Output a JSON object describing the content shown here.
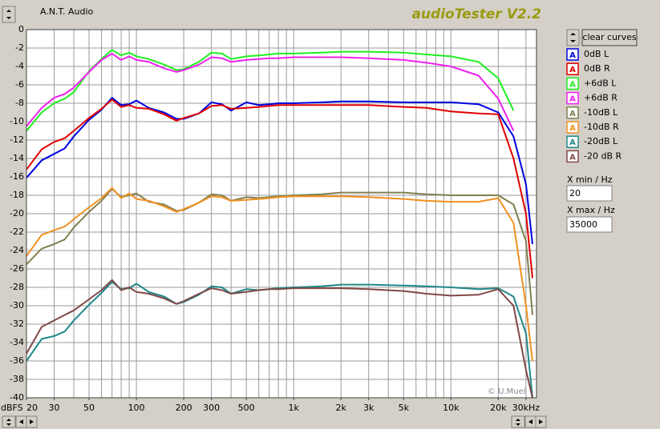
{
  "chart_data": {
    "type": "line",
    "xscale": "log",
    "x_label": "dBFS",
    "x": [
      20,
      25,
      30,
      35,
      40,
      50,
      60,
      70,
      80,
      90,
      100,
      120,
      150,
      180,
      200,
      250,
      300,
      350,
      400,
      500,
      600,
      700,
      800,
      1000,
      1500,
      2000,
      3000,
      5000,
      7000,
      10000,
      15000,
      20000,
      25000,
      30000,
      33000
    ],
    "series": [
      {
        "name": "0dB L",
        "color": "#0000e0",
        "values": [
          -16.1,
          -14.2,
          -13.5,
          -12.9,
          -11.6,
          -9.8,
          -8.7,
          -7.4,
          -8.2,
          -8.1,
          -7.7,
          -8.5,
          -9.0,
          -9.7,
          -9.7,
          -9.1,
          -7.9,
          -8.1,
          -8.8,
          -7.9,
          -8.2,
          -8.1,
          -8.0,
          -8.0,
          -7.9,
          -7.8,
          -7.8,
          -7.9,
          -7.9,
          -7.9,
          -8.1,
          -9.0,
          -11.6,
          -16.8,
          -23.3
        ]
      },
      {
        "name": "0dB R",
        "color": "#e00000",
        "values": [
          -15.2,
          -13.0,
          -12.2,
          -11.8,
          -11.0,
          -9.6,
          -8.6,
          -7.6,
          -8.4,
          -8.2,
          -8.5,
          -8.6,
          -9.2,
          -9.9,
          -9.6,
          -9.1,
          -8.3,
          -8.2,
          -8.6,
          -8.5,
          -8.4,
          -8.3,
          -8.2,
          -8.2,
          -8.2,
          -8.2,
          -8.2,
          -8.4,
          -8.5,
          -8.9,
          -9.1,
          -9.2,
          -14.0,
          -20.0,
          -27.0
        ]
      },
      {
        "name": "+6dB L",
        "color": "#20f020",
        "values": [
          -11.0,
          -9.0,
          -8.0,
          -7.5,
          -6.8,
          -4.5,
          -3.2,
          -2.2,
          -2.8,
          -2.5,
          -2.9,
          -3.2,
          -3.8,
          -4.4,
          -4.3,
          -3.5,
          -2.5,
          -2.6,
          -3.2,
          -2.9,
          -2.8,
          -2.7,
          -2.6,
          -2.6,
          -2.5,
          -2.4,
          -2.4,
          -2.5,
          -2.7,
          -2.9,
          -3.5,
          -5.3,
          -8.8,
          null,
          null
        ]
      },
      {
        "name": "+6dB R",
        "color": "#f020f0",
        "values": [
          -10.5,
          -8.5,
          -7.4,
          -7.0,
          -6.3,
          -4.6,
          -3.3,
          -2.6,
          -3.3,
          -2.9,
          -3.3,
          -3.5,
          -4.2,
          -4.6,
          -4.4,
          -3.8,
          -3.0,
          -3.1,
          -3.5,
          -3.3,
          -3.2,
          -3.1,
          -3.1,
          -3.0,
          -3.0,
          -3.0,
          -3.1,
          -3.3,
          -3.6,
          -4.0,
          -5.0,
          -7.5,
          -11.0,
          null,
          null
        ]
      },
      {
        "name": "-10dB L",
        "color": "#808050",
        "values": [
          -25.5,
          -23.8,
          -23.3,
          -22.8,
          -21.5,
          -19.8,
          -18.6,
          -17.3,
          -18.2,
          -18.0,
          -17.8,
          -18.7,
          -19.0,
          -19.7,
          -19.6,
          -18.8,
          -17.9,
          -18.0,
          -18.6,
          -18.2,
          -18.3,
          -18.2,
          -18.1,
          -18.0,
          -17.9,
          -17.7,
          -17.7,
          -17.7,
          -17.9,
          -18.0,
          -18.0,
          -18.0,
          -19.0,
          -23.0,
          -31.0
        ]
      },
      {
        "name": "-10dB R",
        "color": "#f09020",
        "values": [
          -24.6,
          -22.3,
          -21.8,
          -21.4,
          -20.6,
          -19.3,
          -18.3,
          -17.2,
          -18.3,
          -17.8,
          -18.4,
          -18.6,
          -19.2,
          -19.8,
          -19.5,
          -18.8,
          -18.1,
          -18.2,
          -18.6,
          -18.5,
          -18.4,
          -18.3,
          -18.2,
          -18.1,
          -18.1,
          -18.1,
          -18.2,
          -18.4,
          -18.6,
          -18.7,
          -18.7,
          -18.3,
          -21.0,
          -30.0,
          -36.0
        ]
      },
      {
        "name": "-20dB L",
        "color": "#208888",
        "values": [
          -36.0,
          -33.6,
          -33.3,
          -32.8,
          -31.6,
          -29.9,
          -28.6,
          -27.4,
          -28.2,
          -28.1,
          -27.6,
          -28.5,
          -29.0,
          -29.8,
          -29.6,
          -28.8,
          -27.9,
          -28.0,
          -28.7,
          -28.2,
          -28.3,
          -28.2,
          -28.1,
          -28.0,
          -27.9,
          -27.7,
          -27.7,
          -27.8,
          -27.9,
          -28.0,
          -28.2,
          -28.1,
          -29.0,
          -33.0,
          -40.0
        ]
      },
      {
        "name": "-20 dB R",
        "color": "#804848",
        "values": [
          -35.2,
          -32.3,
          -31.6,
          -31.0,
          -30.5,
          -29.3,
          -28.3,
          -27.2,
          -28.3,
          -28.0,
          -28.5,
          -28.7,
          -29.2,
          -29.8,
          -29.5,
          -28.7,
          -28.1,
          -28.3,
          -28.7,
          -28.5,
          -28.3,
          -28.2,
          -28.2,
          -28.1,
          -28.1,
          -28.1,
          -28.2,
          -28.4,
          -28.7,
          -28.9,
          -28.8,
          -28.2,
          -30.0,
          -37.0,
          -40.0
        ]
      }
    ],
    "xlim": [
      20,
      35000
    ],
    "ylim": [
      -40,
      0
    ],
    "xticks": [
      20,
      30,
      50,
      100,
      200,
      300,
      500,
      {
        "value": 1000,
        "label": "1k"
      },
      {
        "value": 2000,
        "label": "2k"
      },
      {
        "value": 3000,
        "label": "3k"
      },
      {
        "value": 5000,
        "label": "5k"
      },
      {
        "value": 10000,
        "label": "10k"
      },
      {
        "value": 20000,
        "label": "20k"
      },
      {
        "value": 30000,
        "label": "30kHz"
      }
    ],
    "x_grid": [
      20,
      30,
      40,
      50,
      60,
      70,
      80,
      90,
      100,
      200,
      300,
      400,
      500,
      600,
      700,
      800,
      900,
      1000,
      2000,
      3000,
      4000,
      5000,
      6000,
      7000,
      8000,
      9000,
      10000,
      20000,
      30000
    ],
    "yticks": [
      0,
      -2,
      -4,
      -6,
      -8,
      -10,
      -12,
      -14,
      -16,
      -18,
      -20,
      -22,
      -24,
      -26,
      -28,
      -30,
      -32,
      -34,
      -36,
      -38,
      -40
    ],
    "grid": true
  },
  "ui": {
    "app_name": "A.N.T. Audio",
    "product": "audioTester V2.2",
    "clear_button": "clear curves",
    "legend_icon": "A",
    "x_min_label": "X min / Hz",
    "x_max_label": "X max / Hz",
    "copyright": "© U.Muel"
  }
}
